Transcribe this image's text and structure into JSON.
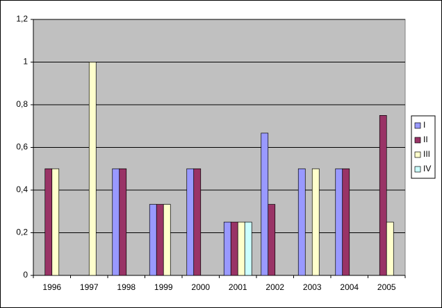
{
  "chart_data": {
    "type": "bar",
    "categories": [
      "1996",
      "1997",
      "1998",
      "1999",
      "2000",
      "2001",
      "2002",
      "2003",
      "2004",
      "2005"
    ],
    "series": [
      {
        "name": "I",
        "color": "#9999ff",
        "values": [
          null,
          null,
          0.5,
          0.333,
          0.5,
          0.25,
          0.667,
          0.5,
          0.5,
          null
        ]
      },
      {
        "name": "II",
        "color": "#993366",
        "values": [
          0.5,
          null,
          0.5,
          0.333,
          0.5,
          0.25,
          0.333,
          null,
          0.5,
          0.75
        ]
      },
      {
        "name": "III",
        "color": "#ffffcc",
        "values": [
          0.5,
          1.0,
          null,
          0.333,
          null,
          0.25,
          null,
          0.5,
          null,
          0.25
        ]
      },
      {
        "name": "IV",
        "color": "#ccffff",
        "values": [
          null,
          null,
          null,
          null,
          null,
          0.25,
          null,
          null,
          null,
          null
        ]
      }
    ],
    "ylim": [
      0,
      1.2
    ],
    "yticks": [
      0,
      {
        "value": 0.2,
        "label": "0,2"
      },
      {
        "value": 0.4,
        "label": "0,4"
      },
      {
        "value": 0.6,
        "label": "0,6"
      },
      {
        "value": 0.8,
        "label": "0,8"
      },
      1,
      {
        "value": 1.2,
        "label": "1,2"
      }
    ],
    "grid": true,
    "legend": "right"
  }
}
